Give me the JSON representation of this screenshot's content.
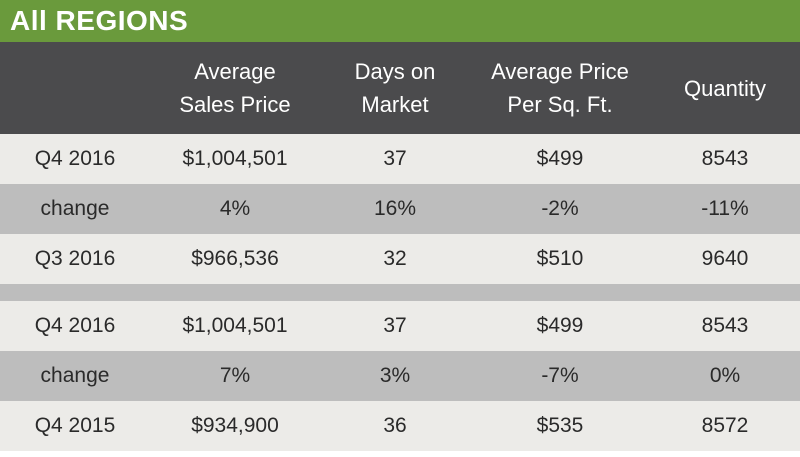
{
  "title": "All REGIONS",
  "headers": {
    "col1": [
      "Average",
      "Sales Price"
    ],
    "col2": [
      "Days on",
      "Market"
    ],
    "col3": [
      "Average Price",
      "Per Sq. Ft."
    ],
    "col4": [
      "Quantity"
    ]
  },
  "rows": [
    {
      "label": "Q4 2016",
      "avg_price": "$1,004,501",
      "days": "37",
      "ppsf": "$499",
      "qty": "8543"
    },
    {
      "label": "change",
      "avg_price": "4%",
      "days": "16%",
      "ppsf": "-2%",
      "qty": "-11%"
    },
    {
      "label": "Q3 2016",
      "avg_price": "$966,536",
      "days": "32",
      "ppsf": "$510",
      "qty": "9640"
    },
    {
      "label": "Q4 2016",
      "avg_price": "$1,004,501",
      "days": "37",
      "ppsf": "$499",
      "qty": "8543"
    },
    {
      "label": "change",
      "avg_price": "7%",
      "days": "3%",
      "ppsf": "-7%",
      "qty": "0%"
    },
    {
      "label": "Q4 2015",
      "avg_price": "$934,900",
      "days": "36",
      "ppsf": "$535",
      "qty": "8572"
    }
  ],
  "colors": {
    "title_bg": "#6a9a3c",
    "header_bg": "#4b4b4d",
    "row_light": "#ecebe8",
    "row_dark": "#bdbdbd"
  }
}
